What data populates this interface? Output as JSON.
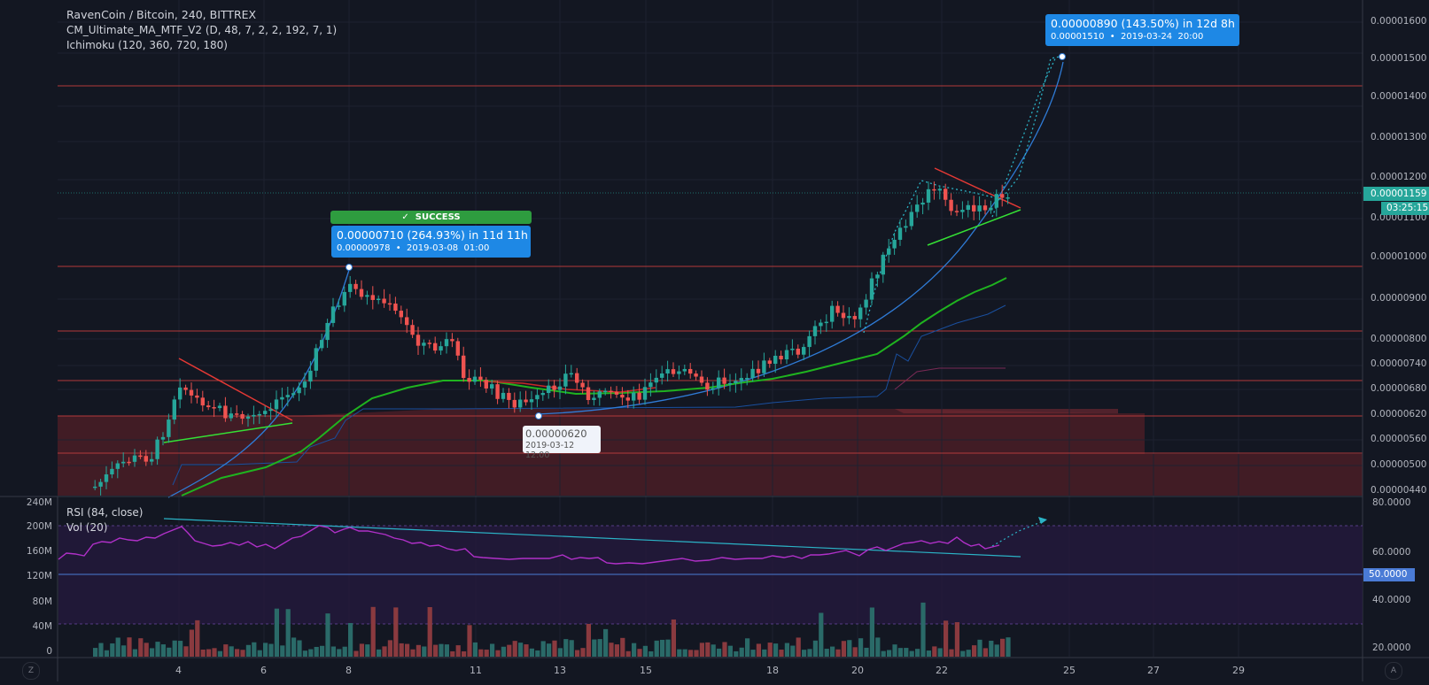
{
  "header": {
    "symbol": "RavenCoin / Bitcoin, 240, BITTREX",
    "indicator1": "CM_Ultimate_MA_MTF_V2 (D, 48, 7, 2, 2, 192, 7, 1)",
    "indicator2": "Ichimoku (120, 360, 720, 180)"
  },
  "price_axis": {
    "ticks": [
      "0.00001600",
      "0.00001500",
      "0.00001400",
      "0.00001300",
      "0.00001200",
      "0.00001100",
      "0.00001000",
      "0.00000900",
      "0.00000800",
      "0.00000740",
      "0.00000680",
      "0.00000620",
      "0.00000560",
      "0.00000500",
      "0.00000440"
    ],
    "last_price": "0.00001159",
    "countdown": "03:25:15"
  },
  "time_axis": {
    "ticks": [
      "4",
      "6",
      "8",
      "11",
      "13",
      "15",
      "18",
      "20",
      "22",
      "25",
      "27",
      "29"
    ]
  },
  "annotations": {
    "success_label": "SUCCESS",
    "success_icon": "check-icon",
    "target1_line1": "0.00000710 (264.93%) in 11d 11h",
    "target1_line2": "0.00000978  •  2019-03-08  01:00",
    "low_line1": "0.00000620",
    "low_line2": "2019-03-12 12:00",
    "target2_line1": "0.00000890 (143.50%) in 12d 8h",
    "target2_line2": "0.00001510  •  2019-03-24  20:00"
  },
  "rsi_pane": {
    "label": "RSI (84, close)",
    "ticks": [
      "80.0000",
      "60.0000",
      "40.0000",
      "20.0000"
    ],
    "marker": "50.0000"
  },
  "vol_pane": {
    "label": "Vol (20)",
    "ticks": [
      "240M",
      "200M",
      "160M",
      "120M",
      "80M",
      "40M",
      "0"
    ]
  },
  "corner": {
    "left": "Z",
    "right": "A"
  },
  "colors": {
    "background": "#131722",
    "bull": "#26a69a",
    "bear": "#ef5350",
    "label_blue": "#1e88e5",
    "success_green": "#2e9c3f",
    "last_price_bg": "#26a69a",
    "rsi_line": "#b030c8"
  }
}
